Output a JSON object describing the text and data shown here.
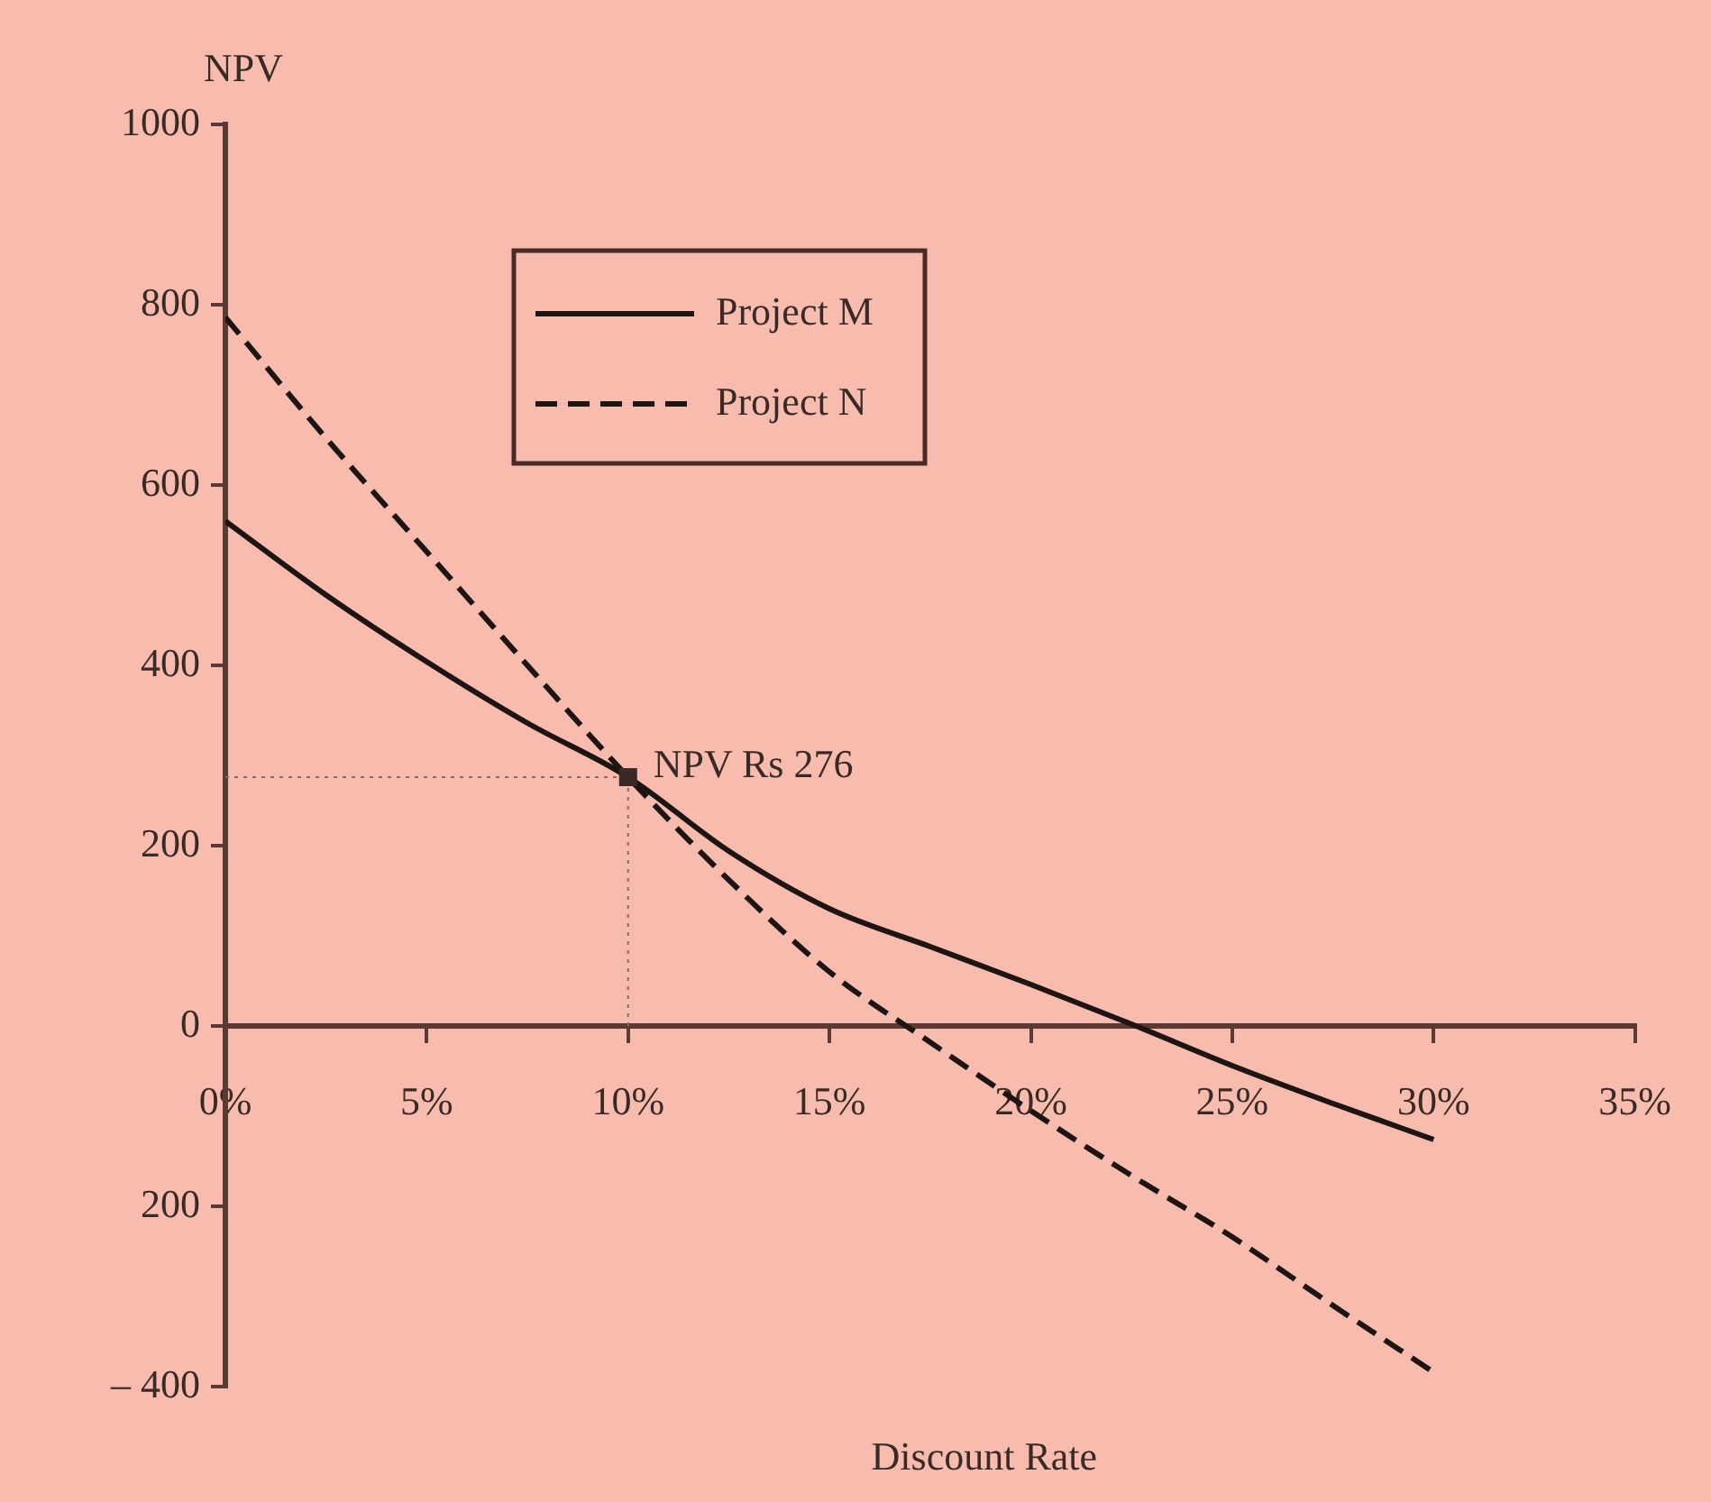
{
  "chart_data": {
    "type": "line",
    "xlabel": "Discount Rate",
    "ylabel": "NPV",
    "x": [
      0,
      2.5,
      5,
      7.5,
      10,
      12.5,
      15,
      17.5,
      20,
      22.5,
      25,
      27.5,
      30
    ],
    "series": [
      {
        "name": "Project M",
        "color": "#1e1412",
        "line_style": "solid",
        "values": [
          560,
          478,
          404,
          336,
          276,
          194,
          130,
          88,
          46,
          2,
          -44,
          -86,
          -126
        ]
      },
      {
        "name": "Project N",
        "color": "#1e1412",
        "line_style": "dashed",
        "values": [
          786,
          652,
          526,
          400,
          276,
          162,
          60,
          -18,
          -94,
          -166,
          -234,
          -310,
          -384
        ]
      }
    ],
    "xlim": [
      0,
      35
    ],
    "xticks": [
      {
        "value": 0,
        "label": "0%"
      },
      {
        "value": 5,
        "label": "5%"
      },
      {
        "value": 10,
        "label": "10%"
      },
      {
        "value": 15,
        "label": "15%"
      },
      {
        "value": 20,
        "label": "20%"
      },
      {
        "value": 25,
        "label": "25%"
      },
      {
        "value": 30,
        "label": "30%"
      },
      {
        "value": 35,
        "label": "35%"
      }
    ],
    "ylim": [
      -400,
      1000
    ],
    "yticks": [
      1000,
      800,
      600,
      400,
      200,
      0,
      {
        "value": -200,
        "label": "200"
      },
      {
        "value": -400,
        "label": "– 400"
      }
    ],
    "ref_lines": [
      {
        "axis": "y",
        "value": 276,
        "color": "#8a6a62",
        "line_style": "dotted"
      },
      {
        "axis": "x",
        "value": 10,
        "color": "#8a6a62",
        "line_style": "dotted"
      }
    ],
    "annotations": [
      {
        "text": "NPV Rs 276",
        "x": 10,
        "y": 276
      }
    ],
    "legend": "top left",
    "marker": "none"
  }
}
